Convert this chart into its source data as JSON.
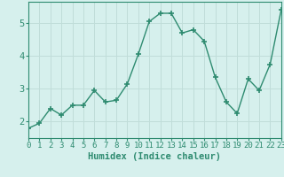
{
  "x": [
    0,
    1,
    2,
    3,
    4,
    5,
    6,
    7,
    8,
    9,
    10,
    11,
    12,
    13,
    14,
    15,
    16,
    17,
    18,
    19,
    20,
    21,
    22,
    23
  ],
  "y": [
    1.8,
    1.95,
    2.4,
    2.2,
    2.5,
    2.5,
    2.95,
    2.6,
    2.65,
    3.15,
    4.05,
    5.05,
    5.3,
    5.3,
    4.7,
    4.8,
    4.45,
    3.35,
    2.6,
    2.25,
    3.3,
    2.95,
    3.75,
    5.4
  ],
  "xlabel": "Humidex (Indice chaleur)",
  "xlim": [
    0,
    23
  ],
  "ylim": [
    1.5,
    5.65
  ],
  "yticks": [
    2,
    3,
    4,
    5
  ],
  "xticks": [
    0,
    1,
    2,
    3,
    4,
    5,
    6,
    7,
    8,
    9,
    10,
    11,
    12,
    13,
    14,
    15,
    16,
    17,
    18,
    19,
    20,
    21,
    22,
    23
  ],
  "line_color": "#2e8b70",
  "marker": "+",
  "marker_size": 4,
  "marker_lw": 1.2,
  "line_width": 1.0,
  "bg_color": "#d6f0ed",
  "grid_color": "#c0ddd9",
  "tick_fontsize": 6.5,
  "xlabel_fontsize": 7.5
}
